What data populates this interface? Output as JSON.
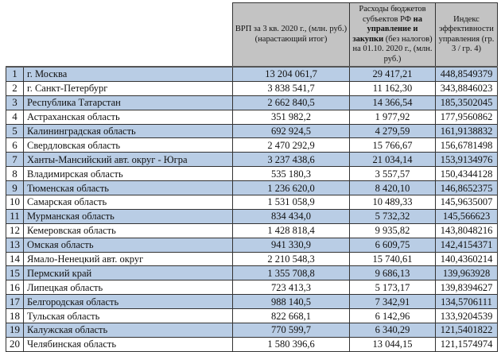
{
  "header": {
    "col_grp": "ВРП за 3 кв. 2020 г., (млн. руб.) (нарастающий итог)",
    "col_exp_pre": "Расходы бюджетов субъектов РФ ",
    "col_exp_bold": "на управление и закупки",
    "col_exp_post": " (без налогов) на 01.10. 2020 г., (млн. руб.)",
    "col_index": "Индекс эффективности управления (гр. 3 / гр. 4)"
  },
  "rows": [
    {
      "n": "1",
      "region": "г. Москва",
      "grp": "13 204 061,7",
      "exp": "29 417,21",
      "index": "448,8549379"
    },
    {
      "n": "2",
      "region": "г. Санкт-Петербург",
      "grp": "3 838 541,7",
      "exp": "11 162,30",
      "index": "343,8846023"
    },
    {
      "n": "3",
      "region": "Республика Татарстан",
      "grp": "2 662 840,5",
      "exp": "14 366,54",
      "index": "185,3502045"
    },
    {
      "n": "4",
      "region": "Астраханская область",
      "grp": "351 982,2",
      "exp": "1 977,92",
      "index": "177,9560862"
    },
    {
      "n": "5",
      "region": "Калининградская область",
      "grp": "692 924,5",
      "exp": "4 279,59",
      "index": "161,9138832"
    },
    {
      "n": "6",
      "region": "Свердловская область",
      "grp": "2 470 292,9",
      "exp": "15 766,67",
      "index": "156,6781498"
    },
    {
      "n": "7",
      "region": "Ханты-Мансийский авт. округ - Югра",
      "grp": "3 237 438,6",
      "exp": "21 034,14",
      "index": "153,9134976"
    },
    {
      "n": "8",
      "region": "Владимирская область",
      "grp": "535 180,3",
      "exp": "3 557,57",
      "index": "150,4344128"
    },
    {
      "n": "9",
      "region": "Тюменская область",
      "grp": "1 236 620,0",
      "exp": "8 420,10",
      "index": "146,8652375"
    },
    {
      "n": "10",
      "region": "Самарская область",
      "grp": "1 531 058,9",
      "exp": "10 489,33",
      "index": "145,9635007"
    },
    {
      "n": "11",
      "region": "Мурманская область",
      "grp": "834 434,0",
      "exp": "5 732,32",
      "index": "145,566623"
    },
    {
      "n": "12",
      "region": "Кемеровская область",
      "grp": "1 428 818,4",
      "exp": "9 935,82",
      "index": "143,8048216"
    },
    {
      "n": "13",
      "region": "Омская область",
      "grp": "941 330,9",
      "exp": "6 609,75",
      "index": "142,4154371"
    },
    {
      "n": "14",
      "region": "Ямало-Ненецкий авт. округ",
      "grp": "2 210 548,3",
      "exp": "15 740,61",
      "index": "140,4360214"
    },
    {
      "n": "15",
      "region": "Пермский край",
      "grp": "1 355 708,8",
      "exp": "9 686,13",
      "index": "139,963928"
    },
    {
      "n": "16",
      "region": "Липецкая область",
      "grp": "723 413,3",
      "exp": "5 173,17",
      "index": "139,8394627"
    },
    {
      "n": "17",
      "region": "Белгородская область",
      "grp": "988 140,5",
      "exp": "7 342,91",
      "index": "134,5706111"
    },
    {
      "n": "18",
      "region": "Тульская область",
      "grp": "822 668,1",
      "exp": "6 142,96",
      "index": "133,9204539"
    },
    {
      "n": "19",
      "region": "Калужская область",
      "grp": "770 599,7",
      "exp": "6 340,29",
      "index": "121,5401822"
    },
    {
      "n": "20",
      "region": "Челябинская область",
      "grp": "1 580 396,6",
      "exp": "13 044,15",
      "index": "121,1574974"
    }
  ]
}
